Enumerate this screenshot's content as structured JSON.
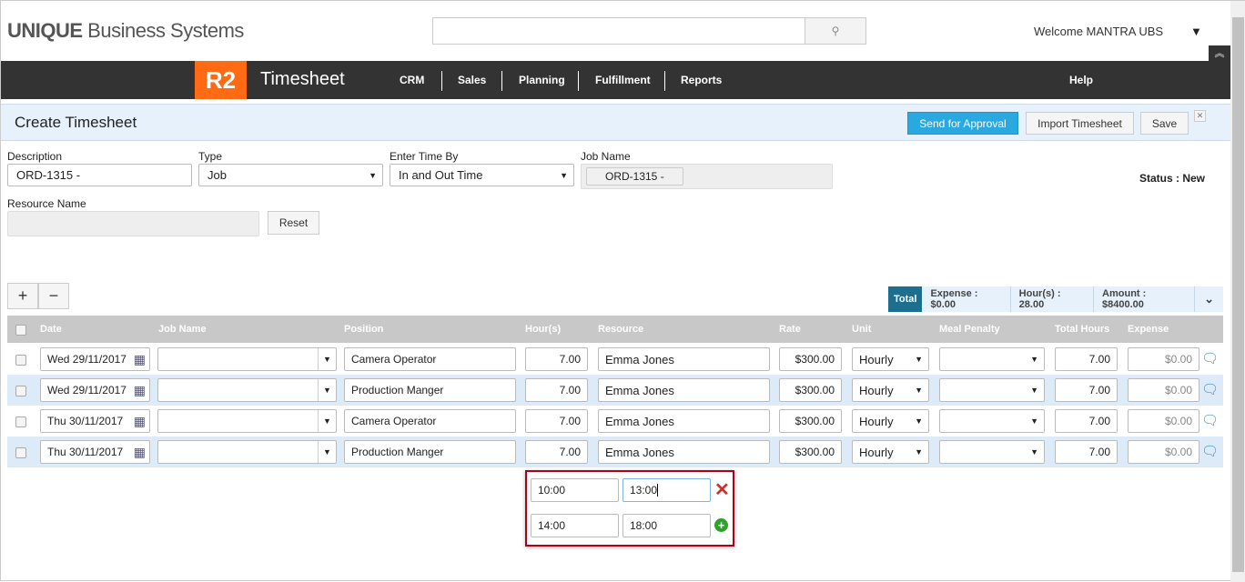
{
  "header": {
    "logo_bold": "UNIQUE",
    "logo_rest": " Business Systems",
    "search_placeholder": "",
    "welcome": "Welcome MANTRA UBS"
  },
  "nav": {
    "badge": "R2",
    "app_title": "Timesheet",
    "items": [
      "CRM",
      "Sales",
      "Planning",
      "Fulfillment",
      "Reports"
    ],
    "help": "Help"
  },
  "page": {
    "title": "Create Timesheet",
    "send_label": "Send for Approval",
    "import_label": "Import Timesheet",
    "save_label": "Save"
  },
  "form": {
    "description_label": "Description",
    "description_value": "ORD-1315 -",
    "type_label": "Type",
    "type_value": "Job",
    "enter_time_label": "Enter Time By",
    "enter_time_value": "In and Out Time",
    "job_name_label": "Job Name",
    "job_name_tag": "ORD-1315 -",
    "status": "Status : New",
    "resource_label": "Resource Name",
    "reset_label": "Reset"
  },
  "totals": {
    "total": "Total",
    "expense": "Expense : $0.00",
    "hours": "Hour(s) : 28.00",
    "amount": "Amount : $8400.00",
    "accent": "#1c6f8f"
  },
  "table": {
    "headers": [
      "Date",
      "Job Name",
      "Position",
      "Hour(s)",
      "Resource",
      "Rate",
      "Unit",
      "Meal Penalty",
      "Total Hours",
      "Expense"
    ],
    "rows": [
      {
        "date": "Wed 29/11/2017",
        "job": "",
        "position": "Camera Operator",
        "hours": "7.00",
        "resource": "Emma Jones",
        "rate": "$300.00",
        "unit": "Hourly",
        "meal": "",
        "total": "7.00",
        "expense": "$0.00"
      },
      {
        "date": "Wed 29/11/2017",
        "job": "",
        "position": "Production Manger",
        "hours": "7.00",
        "resource": "Emma Jones",
        "rate": "$300.00",
        "unit": "Hourly",
        "meal": "",
        "total": "7.00",
        "expense": "$0.00"
      },
      {
        "date": "Thu 30/11/2017",
        "job": "",
        "position": "Camera Operator",
        "hours": "7.00",
        "resource": "Emma Jones",
        "rate": "$300.00",
        "unit": "Hourly",
        "meal": "",
        "total": "7.00",
        "expense": "$0.00"
      },
      {
        "date": "Thu 30/11/2017",
        "job": "",
        "position": "Production Manger",
        "hours": "7.00",
        "resource": "Emma Jones",
        "rate": "$300.00",
        "unit": "Hourly",
        "meal": "",
        "total": "7.00",
        "expense": "$0.00"
      }
    ]
  },
  "time_popup": {
    "entries": [
      {
        "in": "10:00",
        "out": "13:00"
      },
      {
        "in": "14:00",
        "out": "18:00"
      }
    ]
  }
}
